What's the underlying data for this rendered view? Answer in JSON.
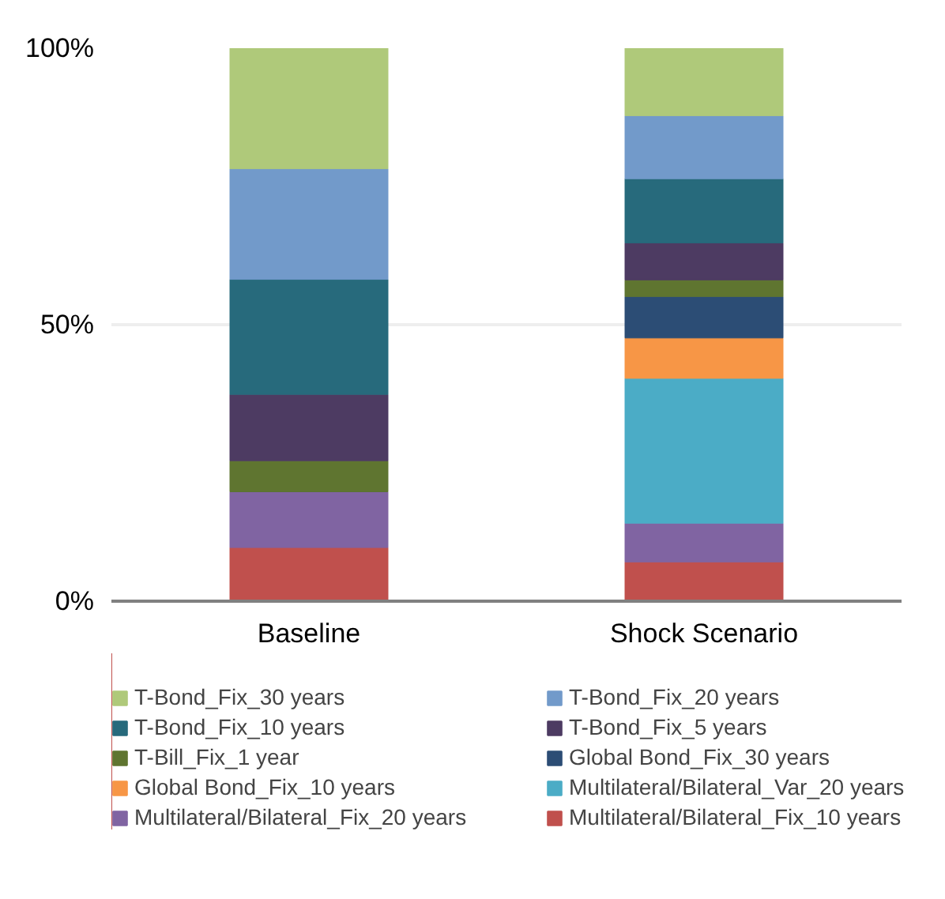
{
  "chart_data": {
    "type": "bar",
    "stacked": true,
    "categories": [
      "Baseline",
      "Shock Scenario"
    ],
    "ylim": [
      0,
      100
    ],
    "yticks": [
      {
        "value": 0,
        "label": "0%"
      },
      {
        "value": 50,
        "label": "50%"
      },
      {
        "value": 100,
        "label": "100%"
      }
    ],
    "grid": "y",
    "legend": "bottom",
    "series": [
      {
        "name": "Multilateral/Bilateral_Fix_10 years",
        "color": "#c0504d",
        "values": [
          9.7,
          7.1
        ]
      },
      {
        "name": "Multilateral/Bilateral_Fix_20 years",
        "color": "#8064a2",
        "values": [
          10.1,
          7.0
        ]
      },
      {
        "name": "Multilateral/Bilateral_Var_20 years",
        "color": "#4bacc6",
        "values": [
          0,
          26.2
        ]
      },
      {
        "name": "Global Bond_Fix_10 years",
        "color": "#f79646",
        "values": [
          0,
          7.3
        ]
      },
      {
        "name": "Global Bond_Fix_30 years",
        "color": "#2c4d75",
        "values": [
          0,
          7.5
        ]
      },
      {
        "name": "T-Bill_Fix_1 year",
        "color": "#5f7530",
        "values": [
          5.6,
          3.0
        ]
      },
      {
        "name": "T-Bond_Fix_5 years",
        "color": "#4d3b62",
        "values": [
          12.0,
          6.7
        ]
      },
      {
        "name": "T-Bond_Fix_10 years",
        "color": "#276a7c",
        "values": [
          20.8,
          11.6
        ]
      },
      {
        "name": "T-Bond_Fix_20 years",
        "color": "#729aca",
        "values": [
          20.0,
          11.4
        ]
      },
      {
        "name": "T-Bond_Fix_30 years",
        "color": "#afc97a",
        "values": [
          21.8,
          12.2
        ]
      }
    ]
  }
}
